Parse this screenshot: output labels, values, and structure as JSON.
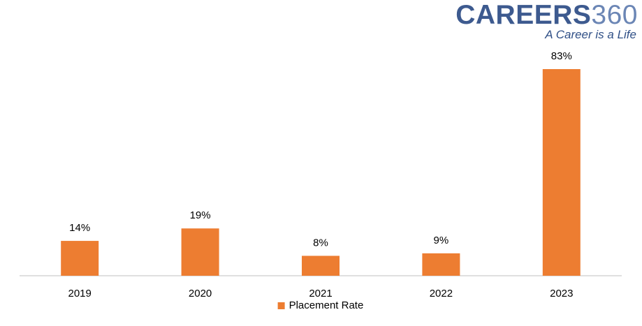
{
  "brand": {
    "name_strong": "CAREERS",
    "name_light": "360",
    "tagline": "A Career is a Life"
  },
  "chart_data": {
    "type": "bar",
    "title": "",
    "xlabel": "",
    "ylabel": "",
    "categories": [
      "2019",
      "2020",
      "2021",
      "2022",
      "2023"
    ],
    "series": [
      {
        "name": "Placement Rate",
        "values": [
          14,
          19,
          8,
          9,
          83
        ],
        "color": "#ed7d31"
      }
    ],
    "data_labels": [
      "14%",
      "19%",
      "8%",
      "9%",
      "83%"
    ],
    "value_unit": "%",
    "ylim": [
      0,
      83
    ],
    "grid": false,
    "legend_position": "bottom"
  }
}
